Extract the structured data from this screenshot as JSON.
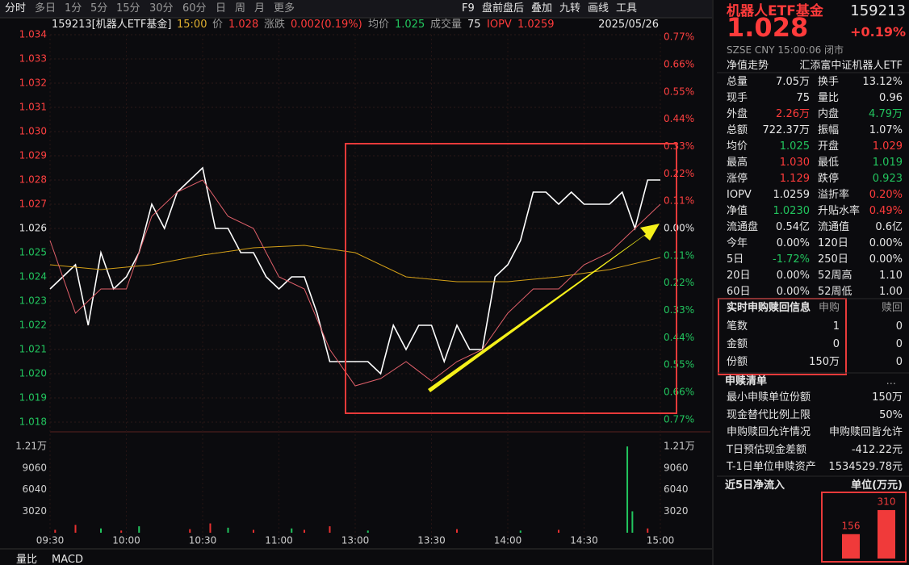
{
  "toolbar": {
    "left": [
      "分时",
      "多日",
      "1分",
      "5分",
      "15分",
      "30分",
      "60分",
      "日",
      "周",
      "月",
      "更多"
    ],
    "right": [
      "F9",
      "盘前盘后",
      "叠加",
      "九转",
      "画线",
      "工具"
    ]
  },
  "info_bar": {
    "code": "159213[机器人ETF基金]",
    "time": "15:00",
    "price_label": "价",
    "price": "1.028",
    "change_label": "涨跌",
    "change": "0.002(0.19%)",
    "avg_label": "均价",
    "avg": "1.025",
    "volume_label": "成交量",
    "volume": "75",
    "iopv_label": "IOPV",
    "iopv": "1.0259",
    "date": "2025/05/26"
  },
  "chart": {
    "type": "line",
    "xlim": [
      0,
      240
    ],
    "xticks": [
      {
        "value": 0,
        "label": "09:30"
      },
      {
        "value": 30,
        "label": "10:00"
      },
      {
        "value": 60,
        "label": "10:30"
      },
      {
        "value": 90,
        "label": "11:00"
      },
      {
        "value": 120,
        "label": "13:00"
      },
      {
        "value": 150,
        "label": "13:30"
      },
      {
        "value": 180,
        "label": "14:00"
      },
      {
        "value": 210,
        "label": "14:30"
      },
      {
        "value": 240,
        "label": "15:00"
      }
    ],
    "ylim": [
      1.018,
      1.034
    ],
    "yticks": [
      1.034,
      1.033,
      1.032,
      1.031,
      {
        "value": 1.03,
        "label": "1.030"
      },
      1.029,
      1.028,
      1.027,
      1.026,
      1.025,
      1.024,
      1.023,
      1.022,
      1.021,
      {
        "value": 1.02,
        "label": "1.020"
      },
      1.019,
      1.018
    ],
    "y2lim": [
      -0.78,
      0.78
    ],
    "y2ticks": [
      {
        "value": 0.77,
        "label": "0.77%"
      },
      {
        "value": 0.66,
        "label": "0.66%"
      },
      {
        "value": 0.55,
        "label": "0.55%"
      },
      {
        "value": 0.44,
        "label": "0.44%"
      },
      {
        "value": 0.33,
        "label": "0.33%"
      },
      {
        "value": 0.22,
        "label": "0.22%"
      },
      {
        "value": 0.11,
        "label": "0.11%"
      },
      {
        "value": 0,
        "label": "0.00%"
      },
      {
        "value": -0.11,
        "label": "0.11%"
      },
      {
        "value": -0.22,
        "label": "0.22%"
      },
      {
        "value": -0.33,
        "label": "0.33%"
      },
      {
        "value": -0.44,
        "label": "0.44%"
      },
      {
        "value": -0.55,
        "label": "0.55%"
      },
      {
        "value": -0.66,
        "label": "0.66%"
      },
      {
        "value": -0.77,
        "label": "0.77%"
      }
    ],
    "series": [
      {
        "color": "#ffffff",
        "x": [
          0,
          5,
          10,
          15,
          20,
          25,
          30,
          35,
          40,
          45,
          50,
          55,
          60,
          65,
          70,
          75,
          80,
          85,
          90,
          95,
          100,
          105,
          110,
          115,
          120,
          125,
          130,
          135,
          140,
          145,
          150,
          155,
          160,
          165,
          170,
          175,
          180,
          185,
          190,
          195,
          200,
          205,
          210,
          215,
          220,
          225,
          230,
          235,
          240
        ],
        "values": [
          1.0235,
          1.024,
          1.0245,
          1.022,
          1.025,
          1.0235,
          1.024,
          1.025,
          1.027,
          1.026,
          1.0275,
          1.028,
          1.0285,
          1.026,
          1.026,
          1.025,
          1.025,
          1.024,
          1.0235,
          1.024,
          1.024,
          1.0225,
          1.0205,
          1.0205,
          1.0205,
          1.0205,
          1.02,
          1.022,
          1.021,
          1.022,
          1.022,
          1.0205,
          1.022,
          1.021,
          1.021,
          1.024,
          1.0245,
          1.0255,
          1.0275,
          1.0275,
          1.027,
          1.0275,
          1.027,
          1.027,
          1.027,
          1.0275,
          1.026,
          1.028,
          1.028
        ]
      },
      {
        "color": "#d4a017",
        "x": [
          0,
          20,
          40,
          60,
          80,
          100,
          120,
          140,
          160,
          180,
          200,
          220,
          240
        ],
        "values": [
          1.0245,
          1.0243,
          1.0245,
          1.0249,
          1.0252,
          1.0253,
          1.025,
          1.024,
          1.0238,
          1.0238,
          1.024,
          1.0243,
          1.0248
        ]
      },
      {
        "color": "#e0606a",
        "x": [
          0,
          10,
          20,
          30,
          40,
          50,
          60,
          70,
          80,
          90,
          100,
          110,
          120,
          130,
          140,
          150,
          160,
          170,
          180,
          190,
          200,
          210,
          220,
          230,
          240
        ],
        "values": [
          1.0255,
          1.0225,
          1.0235,
          1.0235,
          1.0265,
          1.0275,
          1.028,
          1.0265,
          1.026,
          1.024,
          1.0235,
          1.021,
          1.0195,
          1.0198,
          1.0205,
          1.0197,
          1.0205,
          1.021,
          1.0225,
          1.0235,
          1.0235,
          1.0245,
          1.025,
          1.026,
          1.027
        ]
      }
    ],
    "volume": {
      "ylim": [
        0,
        13000
      ],
      "yticks": [
        {
          "value": 12080,
          "label": "1.21万"
        },
        9060,
        6040,
        3020
      ],
      "x": [
        2,
        10,
        20,
        28,
        35,
        55,
        63,
        70,
        80,
        95,
        100,
        110,
        125,
        160,
        185,
        200,
        227,
        229,
        235
      ],
      "values": [
        400,
        1100,
        600,
        300,
        900,
        500,
        1300,
        700,
        400,
        600,
        400,
        900,
        300,
        500,
        300,
        400,
        12080,
        3000,
        600
      ],
      "colors": [
        "#e83030",
        "#e83030",
        "#22c55e",
        "#e83030",
        "#22c55e",
        "#e83030",
        "#e83030",
        "#22c55e",
        "#e83030",
        "#22c55e",
        "#e83030",
        "#e83030",
        "#22c55e",
        "#e83030",
        "#22c55e",
        "#e83030",
        "#22c55e",
        "#22c55e",
        "#e83030"
      ]
    }
  },
  "bottom_tabs": [
    "量比",
    "MACD"
  ],
  "quote": {
    "name": "机器人ETF基金",
    "code": "159213",
    "price": "1.028",
    "change": "+0.19%",
    "market": "SZSE  CNY  15:00:06  闭市",
    "nav_trend": "净值走势",
    "fund": "汇添富中证机器人ETF",
    "rows": [
      {
        "l1": "总量",
        "v1": "7.05万",
        "c1": "white",
        "l2": "换手",
        "v2": "13.12%",
        "c2": "white"
      },
      {
        "l1": "现手",
        "v1": "75",
        "c1": "white",
        "l2": "量比",
        "v2": "0.96",
        "c2": "white"
      },
      {
        "l1": "外盘",
        "v1": "2.26万",
        "c1": "red",
        "l2": "内盘",
        "v2": "4.79万",
        "c2": "green"
      },
      {
        "l1": "总额",
        "v1": "722.37万",
        "c1": "white",
        "l2": "振幅",
        "v2": "1.07%",
        "c2": "white"
      },
      {
        "l1": "均价",
        "v1": "1.025",
        "c1": "green",
        "l2": "开盘",
        "v2": "1.029",
        "c2": "red"
      },
      {
        "l1": "最高",
        "v1": "1.030",
        "c1": "red",
        "l2": "最低",
        "v2": "1.019",
        "c2": "green"
      },
      {
        "l1": "涨停",
        "v1": "1.129",
        "c1": "red",
        "l2": "跌停",
        "v2": "0.923",
        "c2": "green"
      },
      {
        "l1": "IOPV",
        "v1": "1.0259",
        "c1": "white",
        "l2": "溢折率",
        "v2": "0.20%",
        "c2": "red"
      },
      {
        "l1": "净值",
        "v1": "1.0230",
        "c1": "green",
        "l2": "升贴水率",
        "v2": "0.49%",
        "c2": "red"
      },
      {
        "l1": "流通盘",
        "v1": "0.54亿",
        "c1": "white",
        "l2": "流通值",
        "v2": "0.6亿",
        "c2": "white"
      },
      {
        "l1": "今年",
        "v1": "0.00%",
        "c1": "white",
        "l2": "120日",
        "v2": "0.00%",
        "c2": "white"
      },
      {
        "l1": "5日",
        "v1": "-1.72%",
        "c1": "green",
        "l2": "250日",
        "v2": "0.00%",
        "c2": "white"
      },
      {
        "l1": "20日",
        "v1": "0.00%",
        "c1": "white",
        "l2": "52周高",
        "v2": "1.10",
        "c2": "white"
      },
      {
        "l1": "60日",
        "v1": "0.00%",
        "c1": "white",
        "l2": "52周低",
        "v2": "1.00",
        "c2": "white"
      }
    ],
    "realtime": {
      "title": "实时申购赎回信息",
      "col1": "申购",
      "col2": "赎回",
      "rows": [
        [
          "笔数",
          "1",
          "0"
        ],
        [
          "金额",
          "0",
          "0"
        ],
        [
          "份额",
          "150万",
          "0"
        ]
      ]
    },
    "list": {
      "title": "申赎清单",
      "more": "...",
      "rows": [
        [
          "最小申赎单位份额",
          "150万"
        ],
        [
          "现金替代比例上限",
          "50%"
        ],
        [
          "申购赎回允许情况",
          "申购赎回皆允许"
        ],
        [
          "T日预估现金差额",
          "-412.22元"
        ],
        [
          "T-1日单位申赎资产",
          "1534529.78元"
        ]
      ]
    },
    "net_inflow": {
      "title": "近5日净流入",
      "unit": "单位(万元)",
      "values": [
        156,
        310
      ],
      "color": "#f03a3a",
      "ylim": [
        0,
        320
      ]
    }
  }
}
